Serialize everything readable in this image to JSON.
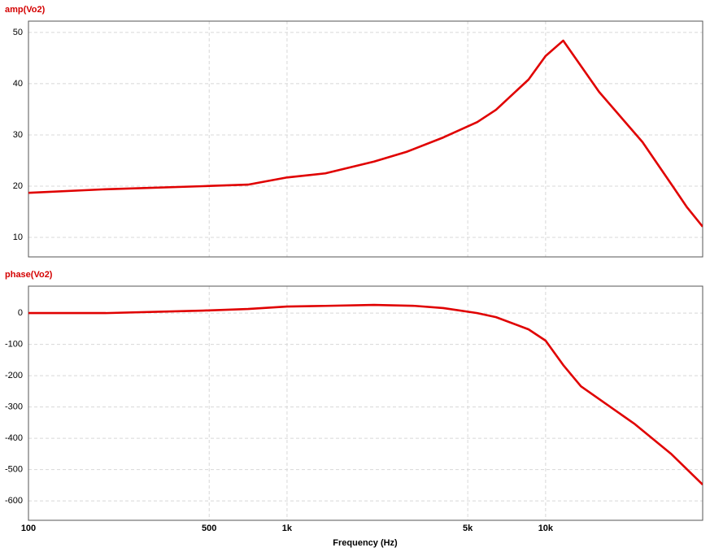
{
  "chart_data": [
    {
      "type": "line",
      "title": "amp(Vo2)",
      "color": "#e00000",
      "log_x": true,
      "grid": true,
      "xlim": [
        100,
        40500
      ],
      "x": [
        100,
        199,
        474,
        707,
        1000,
        1406,
        2170,
        2900,
        4020,
        5440,
        6430,
        8590,
        10000,
        11700,
        16100,
        23700,
        31200,
        35200,
        40500
      ],
      "values": [
        18.7,
        19.4,
        20.0,
        20.3,
        21.7,
        22.5,
        24.8,
        26.7,
        29.5,
        32.5,
        34.9,
        40.8,
        45.4,
        48.4,
        38.4,
        28.6,
        19.8,
        15.9,
        12.1
      ],
      "ylim": [
        6.2,
        52.2
      ],
      "yticks": [
        10,
        20,
        30,
        40,
        50
      ]
    },
    {
      "type": "line",
      "title": "phase(Vo2)",
      "color": "#e00000",
      "log_x": true,
      "grid": true,
      "xlabel": "Frequency (Hz)",
      "xlim": [
        100,
        40500
      ],
      "xticks": [
        100,
        500,
        {
          "value": 1000,
          "label": "1k"
        },
        {
          "value": 5000,
          "label": "5k"
        },
        {
          "value": 10000,
          "label": "10k"
        }
      ],
      "x": [
        100,
        199,
        474,
        707,
        1000,
        1406,
        2170,
        3120,
        4020,
        5440,
        6430,
        8590,
        10000,
        11700,
        13700,
        22000,
        30500,
        40500
      ],
      "values": [
        0,
        0,
        8,
        13,
        21,
        23,
        26,
        23,
        16,
        0,
        -13,
        -52,
        -88,
        -166,
        -234,
        -353,
        -449,
        -548
      ],
      "ylim": [
        -662,
        86
      ],
      "yticks": [
        0,
        -100,
        -200,
        -300,
        -400,
        -500,
        -600
      ]
    }
  ]
}
